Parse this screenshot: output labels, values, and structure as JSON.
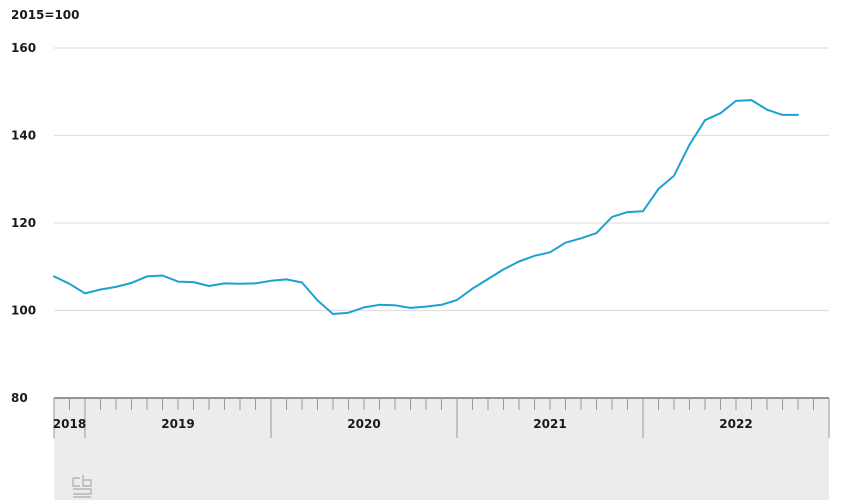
{
  "chart_data": {
    "type": "line",
    "unit_label": "2015=100",
    "ylim": [
      80,
      160
    ],
    "yticks": [
      80,
      100,
      120,
      140,
      160
    ],
    "x_years": [
      "2018",
      "2019",
      "2020",
      "2021",
      "2022"
    ],
    "grid": true,
    "colors": {
      "line": "#1ea0d0",
      "grid": "#e0e0e0",
      "axis_band": "#ececec"
    },
    "series": [
      {
        "x": [
          "2018-11",
          "2018-12",
          "2019-01",
          "2019-02",
          "2019-03",
          "2019-04",
          "2019-05",
          "2019-06",
          "2019-07",
          "2019-08",
          "2019-09",
          "2019-10",
          "2019-11",
          "2019-12",
          "2020-01",
          "2020-02",
          "2020-03",
          "2020-04",
          "2020-05",
          "2020-06",
          "2020-07",
          "2020-08",
          "2020-09",
          "2020-10",
          "2020-11",
          "2020-12",
          "2021-01",
          "2021-02",
          "2021-03",
          "2021-04",
          "2021-05",
          "2021-06",
          "2021-07",
          "2021-08",
          "2021-09",
          "2021-10",
          "2021-11",
          "2021-12",
          "2022-01",
          "2022-02",
          "2022-03",
          "2022-04",
          "2022-05",
          "2022-06",
          "2022-07",
          "2022-08",
          "2022-09",
          "2022-10",
          "2022-11"
        ],
        "values": [
          107.8,
          106.1,
          103.9,
          104.8,
          105.4,
          106.3,
          107.8,
          108.0,
          106.6,
          106.5,
          105.6,
          106.2,
          106.1,
          106.2,
          106.8,
          107.1,
          106.4,
          102.3,
          99.2,
          99.5,
          100.7,
          101.3,
          101.2,
          100.6,
          100.9,
          101.3,
          102.4,
          105.0,
          107.2,
          109.4,
          111.2,
          112.5,
          113.3,
          115.5,
          116.5,
          117.7,
          121.4,
          122.5,
          122.7,
          127.8,
          130.8,
          137.9,
          143.5,
          145.1,
          147.9,
          148.1,
          145.9,
          144.7,
          144.7
        ]
      }
    ]
  },
  "branding": {
    "logo": "cbs-logo-icon"
  }
}
